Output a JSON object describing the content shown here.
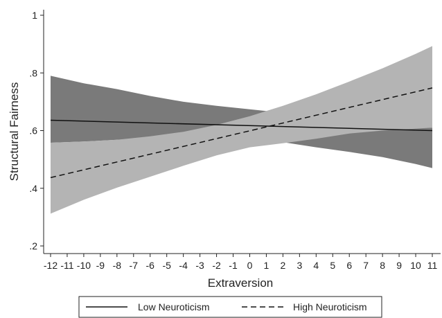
{
  "chart_data": {
    "type": "line",
    "title": "",
    "xlabel": "Extraversion",
    "ylabel": "Structural Fairness",
    "xlim": [
      -12,
      11
    ],
    "ylim": [
      0.2,
      1.0
    ],
    "x_ticks": [
      -12,
      -11,
      -10,
      -9,
      -8,
      -7,
      -6,
      -5,
      -4,
      -3,
      -2,
      -1,
      0,
      1,
      2,
      3,
      4,
      5,
      6,
      7,
      8,
      9,
      10,
      11
    ],
    "y_ticks": [
      {
        "value": 0.2,
        "label": ".2"
      },
      {
        "value": 0.4,
        "label": ".4"
      },
      {
        "value": 0.6,
        "label": ".6"
      },
      {
        "value": 0.8,
        "label": ".8"
      },
      {
        "value": 1.0,
        "label": "1"
      }
    ],
    "grid": false,
    "legend_position": "bottom",
    "series": [
      {
        "name": "Low Neuroticism",
        "style": "solid",
        "line_color": "#111111",
        "band_color": "#7a7a7a",
        "line": [
          [
            -12,
            0.636
          ],
          [
            11,
            0.6
          ]
        ],
        "ci_lower": [
          [
            -12,
            0.558
          ],
          [
            -10,
            0.562
          ],
          [
            -8,
            0.568
          ],
          [
            -6,
            0.574
          ],
          [
            -4,
            0.58
          ],
          [
            -2,
            0.585
          ],
          [
            0,
            0.585
          ],
          [
            2,
            0.56
          ],
          [
            4,
            0.542
          ],
          [
            6,
            0.526
          ],
          [
            8,
            0.508
          ],
          [
            10,
            0.484
          ],
          [
            11,
            0.47
          ]
        ],
        "ci_upper": [
          [
            -12,
            0.79
          ],
          [
            -10,
            0.764
          ],
          [
            -8,
            0.744
          ],
          [
            -6,
            0.72
          ],
          [
            -4,
            0.7
          ],
          [
            -2,
            0.686
          ],
          [
            0,
            0.674
          ],
          [
            1,
            0.668
          ],
          [
            2,
            0.656
          ],
          [
            4,
            0.64
          ],
          [
            6,
            0.628
          ],
          [
            8,
            0.618
          ],
          [
            10,
            0.612
          ],
          [
            11,
            0.61
          ]
        ]
      },
      {
        "name": "High Neuroticism",
        "style": "dashed",
        "line_color": "#111111",
        "band_color": "#b4b4b4",
        "line": [
          [
            -12,
            0.437
          ],
          [
            11,
            0.748
          ]
        ],
        "ci_lower": [
          [
            -12,
            0.312
          ],
          [
            -10,
            0.36
          ],
          [
            -8,
            0.402
          ],
          [
            -6,
            0.44
          ],
          [
            -4,
            0.478
          ],
          [
            -2,
            0.514
          ],
          [
            0,
            0.542
          ],
          [
            2,
            0.556
          ],
          [
            4,
            0.572
          ],
          [
            6,
            0.59
          ],
          [
            8,
            0.6
          ],
          [
            11,
            0.61
          ]
        ],
        "ci_upper": [
          [
            -12,
            0.558
          ],
          [
            -10,
            0.562
          ],
          [
            -8,
            0.568
          ],
          [
            -6,
            0.58
          ],
          [
            -4,
            0.596
          ],
          [
            -2,
            0.62
          ],
          [
            0,
            0.65
          ],
          [
            2,
            0.686
          ],
          [
            4,
            0.726
          ],
          [
            6,
            0.77
          ],
          [
            8,
            0.816
          ],
          [
            10,
            0.866
          ],
          [
            11,
            0.893
          ]
        ]
      }
    ]
  }
}
